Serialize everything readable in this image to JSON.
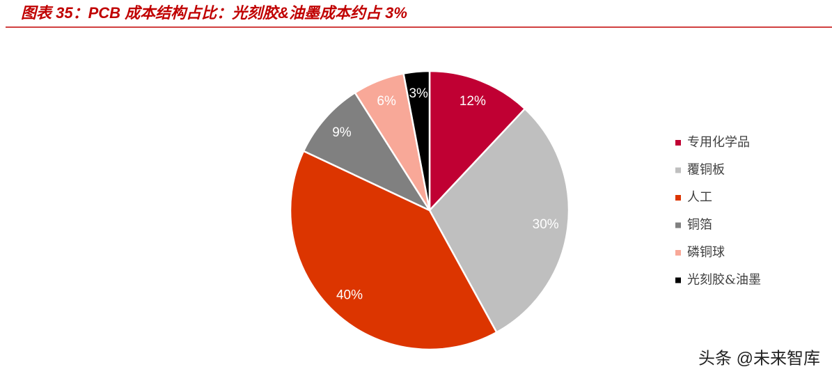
{
  "chart_data": {
    "type": "pie",
    "title": "图表 35：PCB 成本结构占比：光刻胶&油墨成本约占 3%",
    "categories": [
      "专用化学品",
      "覆铜板",
      "人工",
      "铜箔",
      "磷铜球",
      "光刻胶&油墨"
    ],
    "values": [
      12,
      30,
      40,
      9,
      6,
      3
    ],
    "value_labels": [
      "12%",
      "30%",
      "40%",
      "9%",
      "6%",
      "3%"
    ],
    "colors": [
      "#c00033",
      "#bfbfbf",
      "#dc3500",
      "#808080",
      "#f8a898",
      "#000000"
    ],
    "legend": "right",
    "watermark": "头条 @未来智库"
  }
}
